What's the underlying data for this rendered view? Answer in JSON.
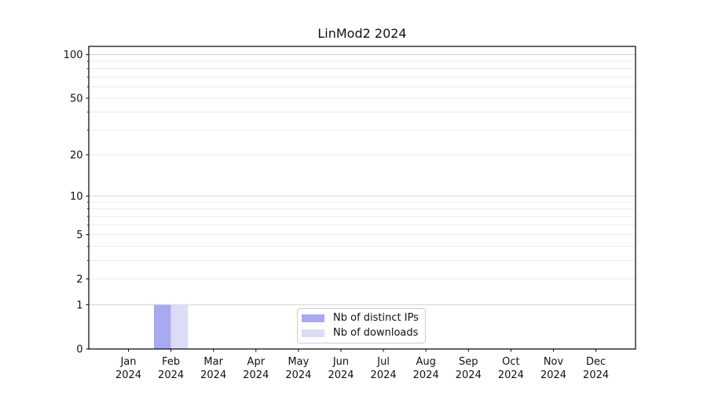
{
  "chart_data": {
    "type": "bar",
    "title": "LinMod2 2024",
    "categories": [
      "Jan",
      "Feb",
      "Mar",
      "Apr",
      "May",
      "Jun",
      "Jul",
      "Aug",
      "Sep",
      "Oct",
      "Nov",
      "Dec"
    ],
    "category_year": "2024",
    "series": [
      {
        "name": "Nb of distinct IPs",
        "color": "#a9a9f1",
        "values": [
          0,
          1,
          0,
          0,
          0,
          0,
          0,
          0,
          0,
          0,
          0,
          0
        ]
      },
      {
        "name": "Nb of downloads",
        "color": "#dcdcf7",
        "values": [
          0,
          1,
          0,
          0,
          0,
          0,
          0,
          0,
          0,
          0,
          0,
          0
        ]
      }
    ],
    "y_axis": {
      "scale": "log1p",
      "labeled_ticks": [
        0,
        1,
        2,
        5,
        10,
        20,
        50,
        100
      ],
      "major_gridlines": [
        1,
        10,
        100
      ],
      "minor_gridlines": [
        2,
        3,
        4,
        5,
        6,
        7,
        8,
        9,
        20,
        30,
        40,
        50,
        60,
        70,
        80,
        90
      ],
      "max_value": 114
    },
    "legend": {
      "position": "bottom-center"
    },
    "grid": true,
    "colors": {
      "major_grid": "#d2d2d2",
      "minor_grid": "#ebebeb",
      "spine": "#000000",
      "text": "#111111"
    }
  }
}
